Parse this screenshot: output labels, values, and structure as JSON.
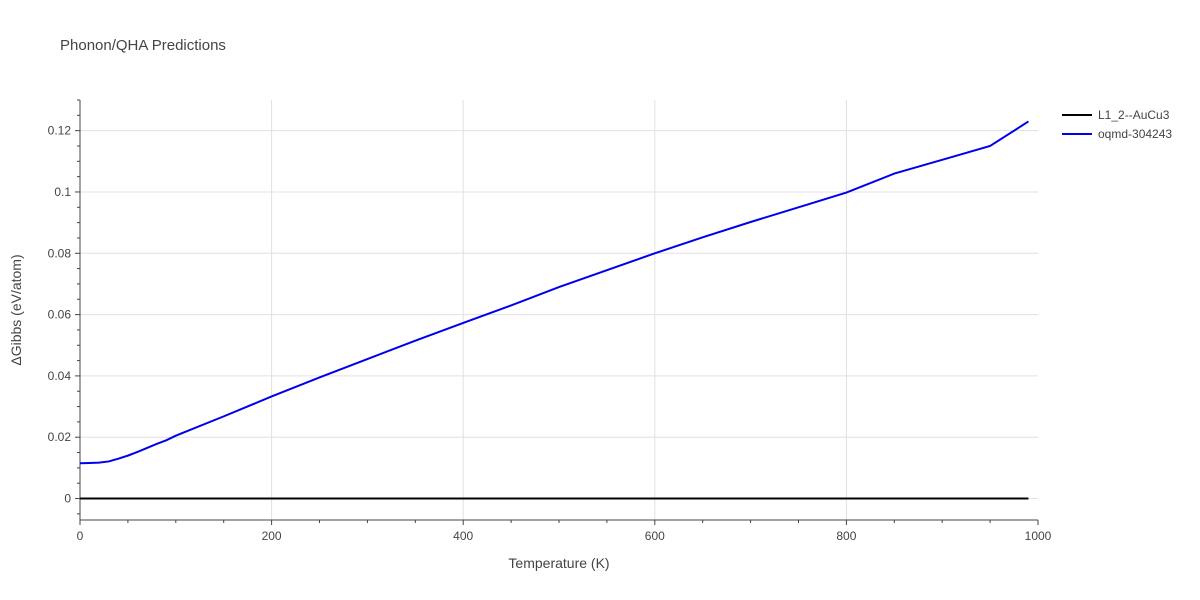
{
  "chart_data": {
    "type": "line",
    "title": "Phonon/QHA Predictions",
    "xlabel": "Temperature (K)",
    "ylabel": "ΔGibbs (eV/atom)",
    "xlim": [
      0,
      1000
    ],
    "ylim": [
      -0.007,
      0.13
    ],
    "xticks": [
      0,
      200,
      400,
      600,
      800,
      1000
    ],
    "xtick_labels": [
      "0",
      "200",
      "400",
      "600",
      "800",
      "1000"
    ],
    "yticks": [
      0,
      0.02,
      0.04,
      0.06,
      0.08,
      0.1,
      0.12
    ],
    "ytick_labels": [
      "0",
      "0.02",
      "0.04",
      "0.06",
      "0.08",
      "0.1",
      "0.12"
    ],
    "grid": true,
    "legend_position": "top-right",
    "series": [
      {
        "name": "L1_2--AuCu3",
        "color": "#000000",
        "x": [
          0,
          990
        ],
        "y": [
          0,
          0
        ]
      },
      {
        "name": "oqmd-304243",
        "color": "#0000ee",
        "x": [
          0,
          10,
          20,
          30,
          40,
          50,
          60,
          70,
          80,
          90,
          100,
          150,
          200,
          250,
          300,
          350,
          400,
          450,
          500,
          550,
          600,
          650,
          700,
          750,
          800,
          850,
          900,
          950,
          990
        ],
        "y": [
          0.0115,
          0.0116,
          0.0117,
          0.0121,
          0.013,
          0.014,
          0.0152,
          0.0165,
          0.0178,
          0.019,
          0.0205,
          0.0268,
          0.0333,
          0.0395,
          0.0455,
          0.0515,
          0.0573,
          0.063,
          0.069,
          0.0745,
          0.08,
          0.0852,
          0.0902,
          0.095,
          0.0998,
          0.106,
          0.1105,
          0.115,
          0.123
        ]
      }
    ]
  }
}
